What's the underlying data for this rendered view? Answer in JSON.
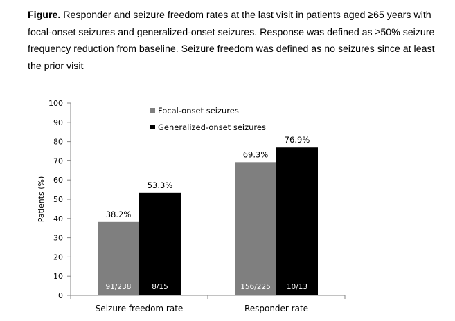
{
  "caption": {
    "lead": "Figure.",
    "text": " Responder and seizure freedom rates at the last visit in patients aged ≥65 years with focal-onset seizures and generalized-onset seizures. Response was defined as ≥50% seizure frequency reduction from baseline. Seizure freedom was defined as no seizures since at least the prior visit"
  },
  "chart_data": {
    "type": "bar",
    "ylabel": "Patients (%)",
    "ylim": [
      0,
      100
    ],
    "yticks": [
      0,
      10,
      20,
      30,
      40,
      50,
      60,
      70,
      80,
      90,
      100
    ],
    "grid": false,
    "legend_position": "top-center",
    "categories": [
      "Seizure freedom rate",
      "Responder rate"
    ],
    "series": [
      {
        "name": "Focal-onset seizures",
        "color": "#7f7f7f",
        "values": [
          38.2,
          69.3
        ],
        "value_labels": [
          "38.2%",
          "69.3%"
        ],
        "count_labels": [
          "91/238",
          "156/225"
        ]
      },
      {
        "name": "Generalized-onset seizures",
        "color": "#000000",
        "values": [
          53.3,
          76.9
        ],
        "value_labels": [
          "53.3%",
          "76.9%"
        ],
        "count_labels": [
          "8/15",
          "10/13"
        ]
      }
    ]
  }
}
